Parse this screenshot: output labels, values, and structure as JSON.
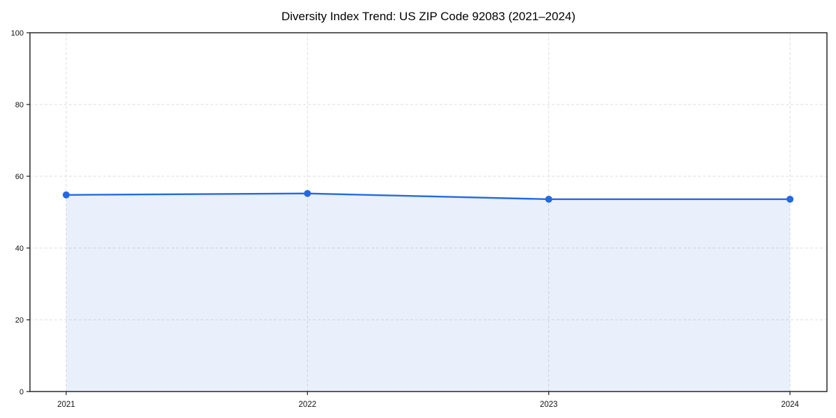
{
  "chart_data": {
    "type": "area",
    "title": "Diversity Index Trend: US ZIP Code 92083 (2021–2024)",
    "categories": [
      "2021",
      "2022",
      "2023",
      "2024"
    ],
    "values": [
      54.8,
      55.2,
      53.6,
      53.6
    ],
    "xlabel": "",
    "ylabel": "",
    "ylim": [
      0,
      100
    ],
    "yticks": [
      0,
      20,
      40,
      60,
      80,
      100
    ],
    "grid": "dashed",
    "legend_position": "none",
    "marker": "circle"
  },
  "colors": {
    "line": "#2369e1",
    "marker": "#2369e1",
    "area_fill": "rgba(35, 105, 225, 0.10)",
    "grid": "#dedede",
    "spine": "#1a1a1a",
    "tick_text": "#111111",
    "background": "#ffffff",
    "title_text": "#000000"
  }
}
